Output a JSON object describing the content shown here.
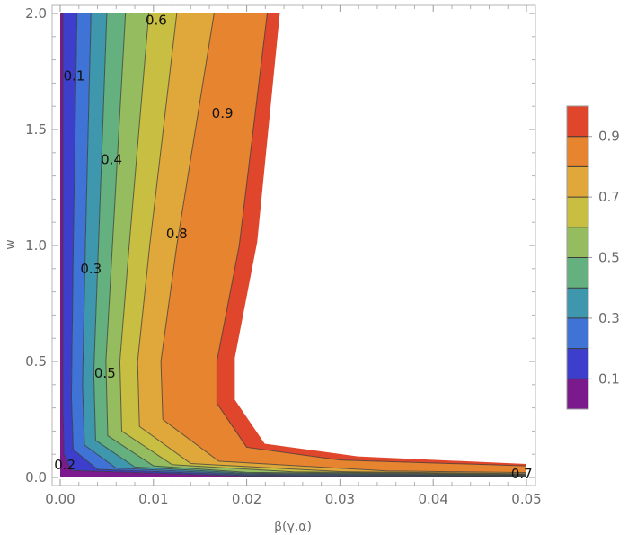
{
  "chart_data": {
    "type": "contour",
    "xlabel": "β(γ,α)",
    "ylabel": "w",
    "xlim": [
      0.0,
      0.05
    ],
    "ylim": [
      0.0,
      2.0
    ],
    "x_ticks": [
      "0.00",
      "0.01",
      "0.02",
      "0.03",
      "0.04",
      "0.05"
    ],
    "x_tick_values": [
      0,
      0.01,
      0.02,
      0.03,
      0.04,
      0.05
    ],
    "y_ticks": [
      "0.0",
      "0.5",
      "1.0",
      "1.5",
      "2.0"
    ],
    "y_tick_values": [
      0,
      0.5,
      1.0,
      1.5,
      2.0
    ],
    "contour_levels": [
      0.1,
      0.2,
      0.3,
      0.4,
      0.5,
      0.6,
      0.7,
      0.8,
      0.9
    ],
    "contour_curves": [
      {
        "level": 0.1,
        "points": [
          [
            0.0003,
            2.0
          ],
          [
            0.0003,
            1.0
          ],
          [
            0.0003,
            0.3
          ],
          [
            0.0004,
            0.1
          ],
          [
            0.0012,
            0.03
          ],
          [
            0.02,
            0.006
          ],
          [
            0.05,
            0.003
          ]
        ]
      },
      {
        "level": 0.2,
        "points": [
          [
            0.0018,
            2.0
          ],
          [
            0.0014,
            1.0
          ],
          [
            0.0012,
            0.35
          ],
          [
            0.0014,
            0.12
          ],
          [
            0.004,
            0.035
          ],
          [
            0.02,
            0.01
          ],
          [
            0.05,
            0.005
          ]
        ]
      },
      {
        "level": 0.3,
        "points": [
          [
            0.0033,
            2.0
          ],
          [
            0.0027,
            1.0
          ],
          [
            0.0024,
            0.4
          ],
          [
            0.0026,
            0.14
          ],
          [
            0.006,
            0.04
          ],
          [
            0.02,
            0.014
          ],
          [
            0.05,
            0.007
          ]
        ]
      },
      {
        "level": 0.4,
        "points": [
          [
            0.005,
            2.0
          ],
          [
            0.0041,
            1.0
          ],
          [
            0.0036,
            0.45
          ],
          [
            0.0038,
            0.16
          ],
          [
            0.008,
            0.045
          ],
          [
            0.02,
            0.018
          ],
          [
            0.05,
            0.009
          ]
        ]
      },
      {
        "level": 0.5,
        "points": [
          [
            0.007,
            2.0
          ],
          [
            0.0056,
            1.0
          ],
          [
            0.0049,
            0.5
          ],
          [
            0.0051,
            0.18
          ],
          [
            0.01,
            0.05
          ],
          [
            0.02,
            0.022
          ],
          [
            0.05,
            0.011
          ]
        ]
      },
      {
        "level": 0.6,
        "points": [
          [
            0.0095,
            2.0
          ],
          [
            0.0074,
            1.0
          ],
          [
            0.0064,
            0.5
          ],
          [
            0.0066,
            0.2
          ],
          [
            0.012,
            0.055
          ],
          [
            0.025,
            0.024
          ],
          [
            0.05,
            0.013
          ]
        ]
      },
      {
        "level": 0.7,
        "points": [
          [
            0.0125,
            2.0
          ],
          [
            0.0096,
            1.0
          ],
          [
            0.0083,
            0.5
          ],
          [
            0.0085,
            0.22
          ],
          [
            0.014,
            0.06
          ],
          [
            0.03,
            0.025
          ],
          [
            0.05,
            0.016
          ]
        ]
      },
      {
        "level": 0.8,
        "points": [
          [
            0.0165,
            2.0
          ],
          [
            0.0125,
            1.0
          ],
          [
            0.0108,
            0.5
          ],
          [
            0.011,
            0.25
          ],
          [
            0.017,
            0.07
          ],
          [
            0.035,
            0.028
          ],
          [
            0.05,
            0.021
          ]
        ]
      },
      {
        "level": 0.9,
        "points": [
          [
            0.0222,
            2.0
          ],
          [
            0.0192,
            1.0
          ],
          [
            0.0168,
            0.5
          ],
          [
            0.0168,
            0.32
          ],
          [
            0.02,
            0.13
          ],
          [
            0.03,
            0.075
          ],
          [
            0.05,
            0.05
          ]
        ]
      }
    ],
    "band_colors": [
      "#7b1a8c",
      "#3d3fcc",
      "#3f73d6",
      "#3e97ad",
      "#64b07e",
      "#95bd5f",
      "#c8be42",
      "#e0a83a",
      "#e6842f",
      "#e0462b"
    ],
    "contour_labels": [
      {
        "text": "0.1",
        "x": 0.0015,
        "y": 1.73
      },
      {
        "text": "0.2",
        "x": 0.0005,
        "y": 0.055
      },
      {
        "text": "0.3",
        "x": 0.0033,
        "y": 0.9
      },
      {
        "text": "0.4",
        "x": 0.0055,
        "y": 1.37
      },
      {
        "text": "0.5",
        "x": 0.0048,
        "y": 0.45
      },
      {
        "text": "0.6",
        "x": 0.0103,
        "y": 1.97
      },
      {
        "text": "0.7",
        "x": 0.0495,
        "y": 0.015
      },
      {
        "text": "0.8",
        "x": 0.0125,
        "y": 1.05
      },
      {
        "text": "0.9",
        "x": 0.0174,
        "y": 1.57
      }
    ],
    "legend": {
      "placement": "right",
      "tick_labels": [
        "0.9",
        "0.7",
        "0.5",
        "0.3",
        "0.1"
      ],
      "tick_values": [
        0.9,
        0.7,
        0.5,
        0.3,
        0.1
      ]
    }
  }
}
